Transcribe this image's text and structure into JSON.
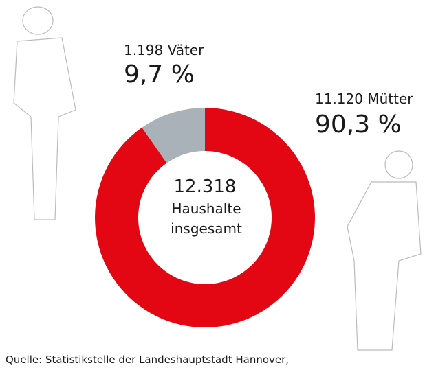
{
  "chart_data": {
    "type": "donut",
    "categories": [
      "1.198 Väter",
      "11.120 Mütter"
    ],
    "values": [
      9.7,
      90.3
    ],
    "value_labels": [
      "9,7 %",
      "90,3 %"
    ],
    "colors": [
      "#a9b2b8",
      "#e30613"
    ],
    "center_lines": [
      "12.318",
      "Haushalte",
      "insgesamt"
    ],
    "source": "Quelle: Statistikstelle der Landeshauptstadt Hannover,"
  }
}
